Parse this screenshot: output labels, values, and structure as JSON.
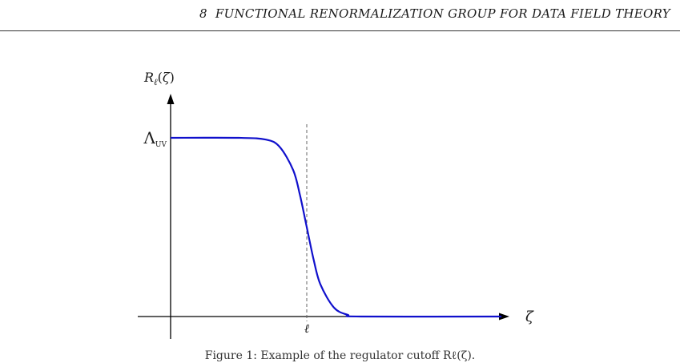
{
  "header": {
    "page_number": "8",
    "running_title": "FUNCTIONAL RENORMALIZATION GROUP FOR DATA FIELD THEORY"
  },
  "figure": {
    "ylabel": "Rℓ(ζ)",
    "ytick_symbol": "Λ",
    "ytick_subscript": "UV",
    "xlabel": "ζ",
    "xtick": "ℓ",
    "caption": "Figure 1: Example of the regulator cutoff Rℓ(ζ)."
  },
  "colors": {
    "curve": "#1010cc",
    "axis": "#000000",
    "dashed": "#666666"
  },
  "chart_data": {
    "type": "line",
    "title": "",
    "xlabel": "ζ",
    "ylabel": "Rℓ(ζ)",
    "x_ticks": [
      "ℓ"
    ],
    "y_ticks": [
      "ΛUV"
    ],
    "ell": 1.0,
    "xlim": [
      0,
      2.45
    ],
    "ylim": [
      0,
      1.2
    ],
    "grid": false,
    "series": [
      {
        "color": "#1010cc",
        "x": [
          0,
          0.5,
          0.7,
          0.8,
          0.9,
          0.95,
          1.0,
          1.05,
          1.1,
          1.2,
          1.3,
          1.4,
          2.43
        ],
        "y": [
          1.0,
          1.0,
          0.99,
          0.95,
          0.82,
          0.68,
          0.5,
          0.32,
          0.18,
          0.05,
          0.01,
          0.0,
          0.0
        ]
      }
    ]
  }
}
